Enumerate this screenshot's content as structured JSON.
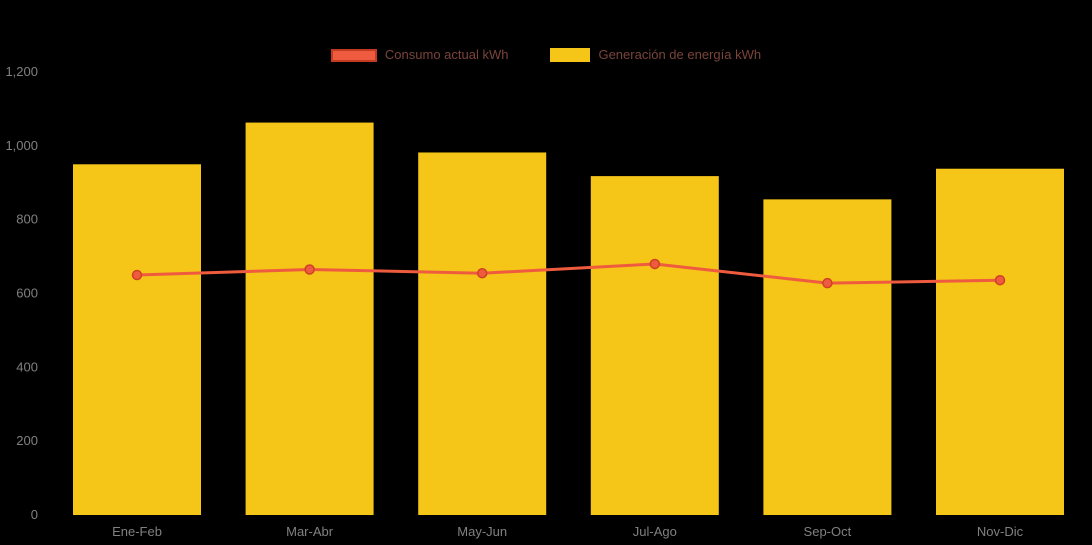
{
  "page": {
    "background": "#000000"
  },
  "legend": {
    "text_color": "#79443B",
    "items": [
      {
        "label": "Consumo actual kWh",
        "color": "#EF5B3E",
        "border": "#C23A22",
        "series_type": "line"
      },
      {
        "label": "Generación de energía kWh",
        "color": "#F5C518",
        "border": "#F5C518",
        "series_type": "bar"
      }
    ]
  },
  "chart_data": {
    "type": "bar",
    "subtype": "combo-bar-line",
    "title": "",
    "xlabel": "",
    "ylabel": "",
    "categories": [
      "Ene-Feb",
      "Mar-Abr",
      "May-Jun",
      "Jul-Ago",
      "Sep-Oct",
      "Nov-Dic"
    ],
    "series": [
      {
        "name": "Generación de energía kWh",
        "type": "bar",
        "color": "#F5C518",
        "values": [
          950,
          1063,
          982,
          918,
          855,
          938
        ]
      },
      {
        "name": "Consumo actual kWh",
        "type": "line",
        "color": "#EF5B3E",
        "marker_stroke": "#CF4024",
        "values": [
          650,
          665,
          655,
          680,
          628,
          636
        ]
      }
    ],
    "ylim": [
      0,
      1200
    ],
    "ytick_values": [
      0,
      200,
      400,
      600,
      800,
      1000,
      1200
    ],
    "ytick_labels": [
      "0",
      "200",
      "400",
      "600",
      "800",
      "1,000",
      "1,200"
    ],
    "grid": false,
    "legend_position": "top-center",
    "axis_label_color": "#808080",
    "background": "#000000"
  }
}
